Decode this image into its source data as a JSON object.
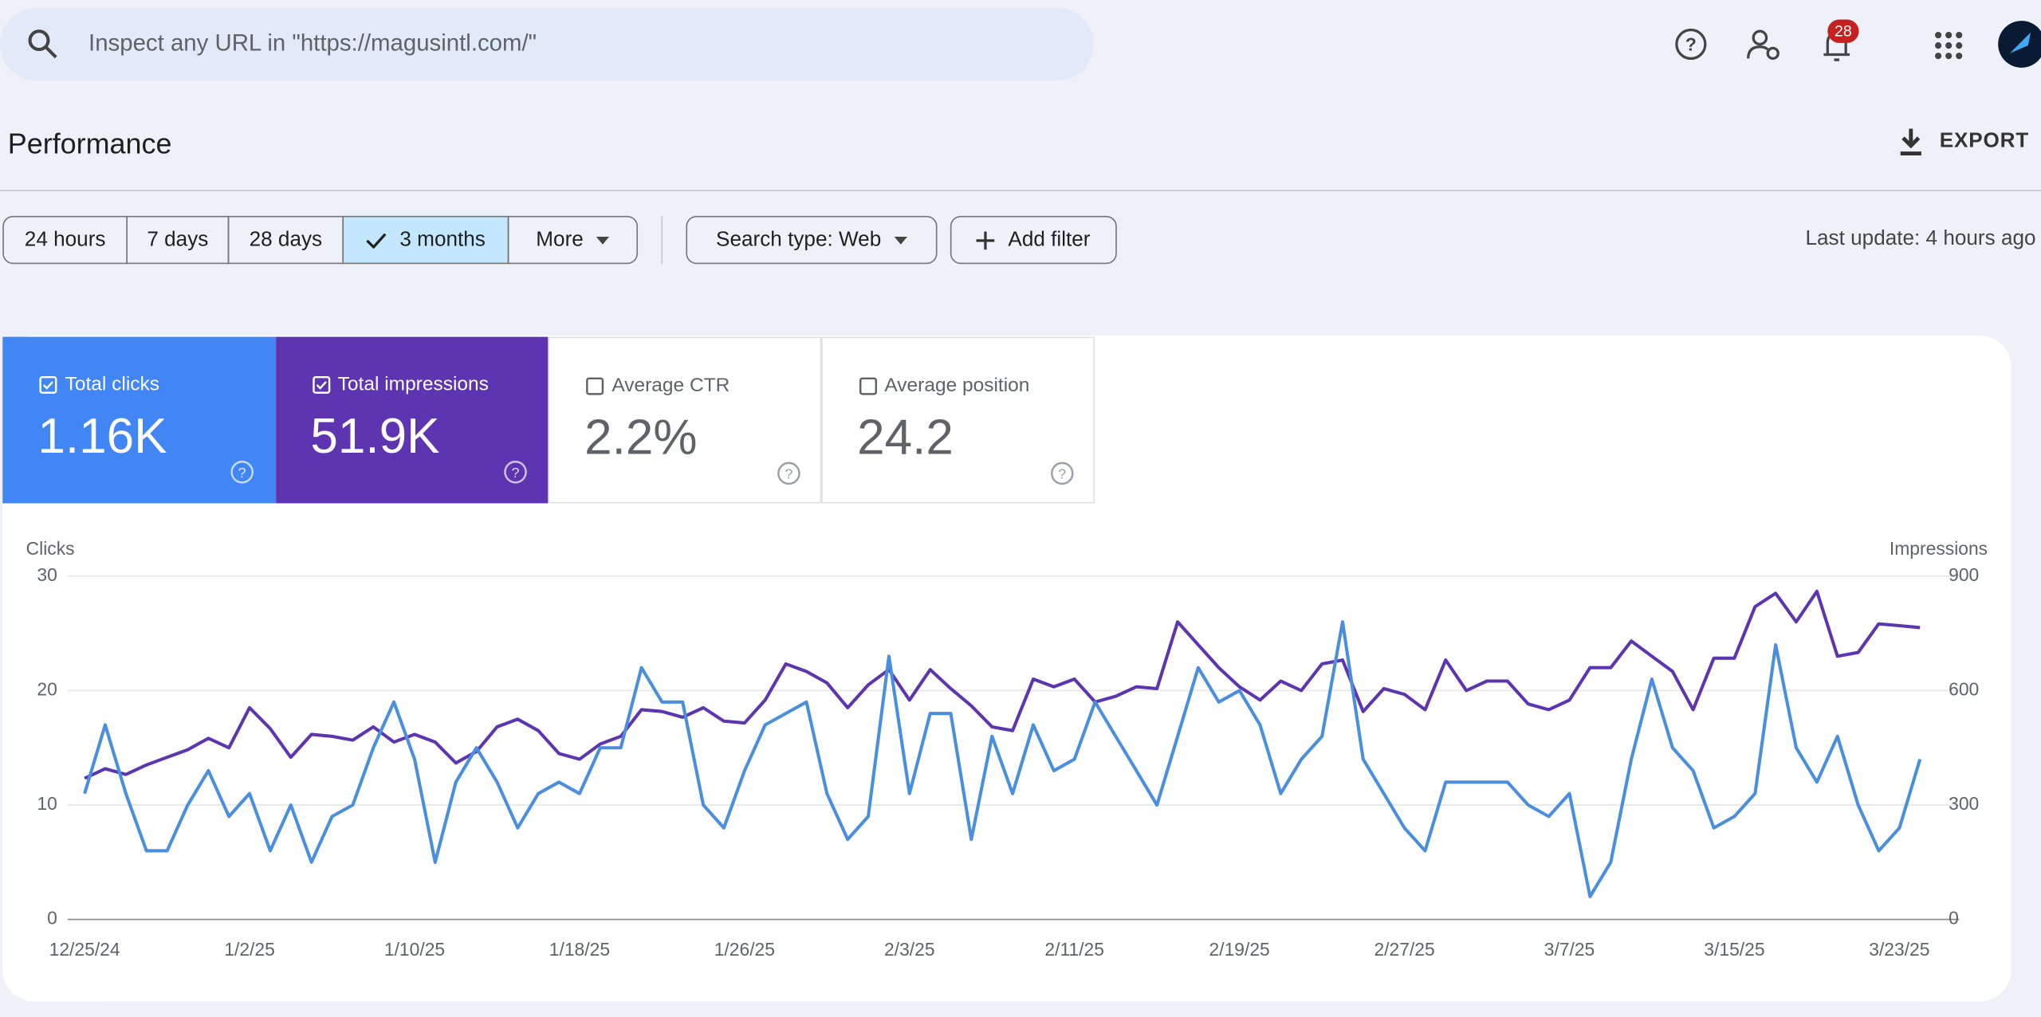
{
  "search": {
    "placeholder": "Inspect any URL in \"https://magusintl.com/\""
  },
  "header": {
    "notification_count": 28,
    "title": "Performance",
    "export": "EXPORT"
  },
  "filters": {
    "ranges": [
      "24 hours",
      "7 days",
      "28 days",
      "3 months",
      "More"
    ],
    "selected": 3,
    "search_type": "Search type: Web",
    "add_filter": "Add filter",
    "last_update": "Last update: 4 hours ago"
  },
  "metrics": [
    {
      "label": "Total clicks",
      "value": "1.16K",
      "checked": true,
      "color": "#4285f4"
    },
    {
      "label": "Total impressions",
      "value": "51.9K",
      "checked": true,
      "color": "#5e35b1"
    },
    {
      "label": "Average CTR",
      "value": "2.2%",
      "checked": false,
      "color": "#00897b"
    },
    {
      "label": "Average position",
      "value": "24.2",
      "checked": false,
      "color": "#e8710a"
    }
  ],
  "chart_data": {
    "type": "line",
    "categories": [
      "12/25/24",
      null,
      null,
      null,
      null,
      null,
      null,
      null,
      "1/2/25",
      null,
      null,
      null,
      null,
      null,
      null,
      null,
      "1/10/25",
      null,
      null,
      null,
      null,
      null,
      null,
      null,
      "1/18/25",
      null,
      null,
      null,
      null,
      null,
      null,
      null,
      "1/26/25",
      null,
      null,
      null,
      null,
      null,
      null,
      null,
      "2/3/25",
      null,
      null,
      null,
      null,
      null,
      null,
      null,
      "2/11/25",
      null,
      null,
      null,
      null,
      null,
      null,
      null,
      "2/19/25",
      null,
      null,
      null,
      null,
      null,
      null,
      null,
      "2/27/25",
      null,
      null,
      null,
      null,
      null,
      null,
      null,
      "3/7/25",
      null,
      null,
      null,
      null,
      null,
      null,
      null,
      "3/15/25",
      null,
      null,
      null,
      null,
      null,
      null,
      null,
      "3/23/25",
      null
    ],
    "y_label": "Clicks",
    "y2_label": "Impressions",
    "ylim": [
      0,
      30
    ],
    "yticks": [
      0,
      10,
      20,
      30
    ],
    "y2lim": [
      0,
      900
    ],
    "y2ticks": [
      0,
      300,
      600,
      900
    ],
    "grid": true,
    "series": [
      {
        "name": "Clicks",
        "color": "#4a8fdf",
        "values": [
          11,
          17,
          11,
          6,
          6,
          10,
          13,
          9,
          11,
          6,
          10,
          5,
          9,
          10,
          15,
          19,
          14,
          5,
          12,
          15,
          12,
          8,
          11,
          12,
          11,
          15,
          15,
          22,
          19,
          19,
          10,
          8,
          13,
          17,
          18,
          19,
          11,
          7,
          9,
          23,
          11,
          18,
          18,
          7,
          16,
          11,
          17,
          13,
          14,
          19,
          16,
          13,
          10,
          16,
          22,
          19,
          20,
          17,
          11,
          14,
          16,
          26,
          14,
          11,
          8,
          6,
          12,
          12,
          12,
          12,
          10,
          9,
          11,
          2,
          5,
          14,
          21,
          15,
          13,
          8,
          9,
          11,
          24,
          15,
          12,
          16,
          10,
          6,
          8,
          14
        ]
      },
      {
        "name": "Impressions",
        "color": "#5e35b1",
        "axis": "y2",
        "values": [
          370,
          395,
          380,
          405,
          425,
          445,
          475,
          450,
          555,
          500,
          425,
          485,
          480,
          470,
          505,
          465,
          485,
          465,
          410,
          440,
          505,
          525,
          495,
          435,
          420,
          460,
          480,
          550,
          545,
          530,
          555,
          520,
          515,
          575,
          670,
          650,
          620,
          555,
          615,
          655,
          575,
          655,
          605,
          560,
          505,
          495,
          630,
          610,
          630,
          570,
          585,
          610,
          605,
          780,
          720,
          660,
          610,
          575,
          625,
          600,
          670,
          680,
          545,
          605,
          590,
          550,
          680,
          600,
          625,
          625,
          565,
          550,
          575,
          660,
          660,
          730,
          690,
          650,
          550,
          685,
          685,
          820,
          855,
          780,
          860,
          690,
          700,
          775,
          770,
          765
        ]
      }
    ]
  }
}
